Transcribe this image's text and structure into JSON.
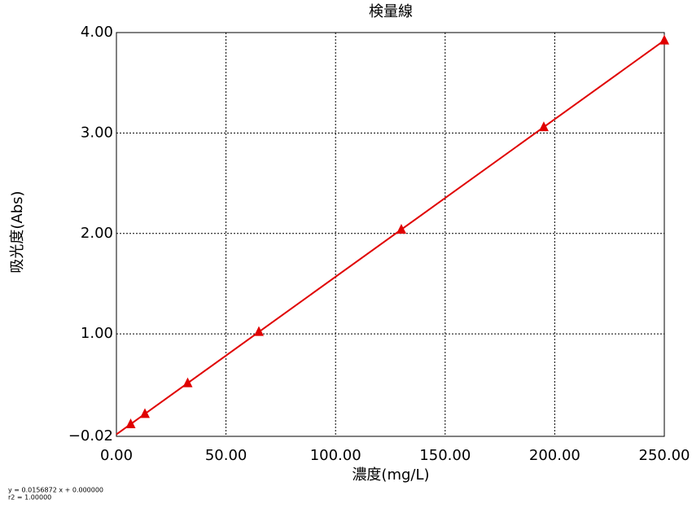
{
  "chart_data": {
    "type": "line",
    "title": "検量線",
    "x_label": "濃度(mg/L)",
    "y_label": "吸光度(Abs)",
    "annotations": [
      "y = 0.0156872 x + 0.000000",
      "r2 = 1.00000"
    ],
    "series": [
      {
        "color": "#e00000",
        "marker": true,
        "line": false,
        "x": [
          6.5,
          13,
          32.5,
          65,
          130,
          195,
          250
        ],
        "values": [
          0.102,
          0.204,
          0.51,
          1.02,
          2.039,
          3.059,
          3.922
        ]
      },
      {
        "color": "#e00000",
        "marker": false,
        "line": true,
        "x": [
          0,
          250
        ],
        "values": [
          0,
          3.922
        ]
      }
    ],
    "xlim": [
      0,
      250
    ],
    "ylim": [
      -0.02,
      4.0
    ],
    "xticks": [
      {
        "value": 0,
        "label": "0.00"
      },
      {
        "value": 50,
        "label": "50.00"
      },
      {
        "value": 100,
        "label": "100.00"
      },
      {
        "value": 150,
        "label": "150.00"
      },
      {
        "value": 200,
        "label": "200.00"
      },
      {
        "value": 250,
        "label": "250.00"
      }
    ],
    "yticks": [
      {
        "value": -0.02,
        "label": "−0.02"
      },
      {
        "value": 1,
        "label": "1.00"
      },
      {
        "value": 2,
        "label": "2.00"
      },
      {
        "value": 3,
        "label": "3.00"
      },
      {
        "value": 4,
        "label": "4.00"
      }
    ],
    "grid": true
  }
}
